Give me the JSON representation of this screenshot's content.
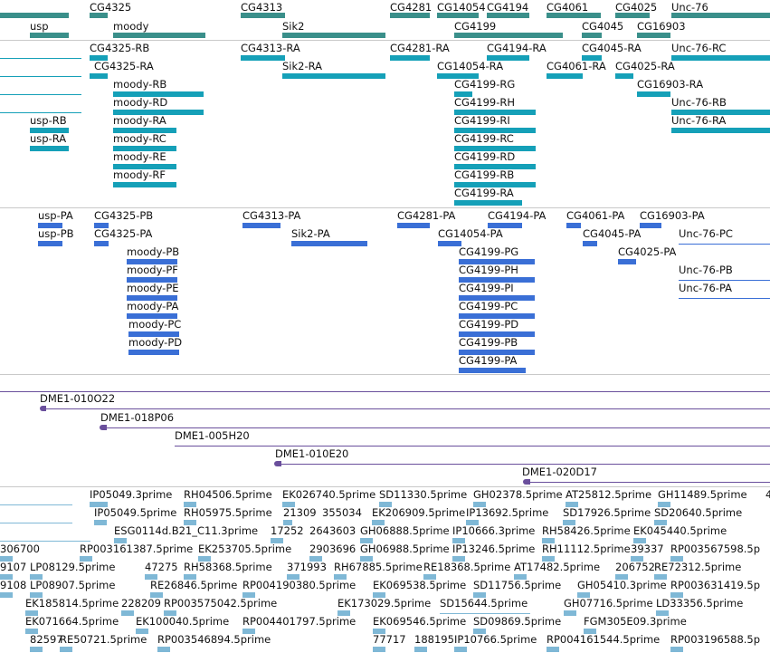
{
  "colors": {
    "gene": "#3a8f8a",
    "transcript_a": "#15a0b8",
    "transcript_b": "#3a6fd6",
    "clone": "#6a4f9c",
    "est": "#7fb8d6",
    "separator": "#c9c9c9"
  },
  "tracks": {
    "genes": {
      "labels": [
        "CG4325",
        "CG4313",
        "CG4281",
        "CG14054",
        "CG4194",
        "CG4061",
        "CG4025",
        "Unc-76",
        "usp",
        "moody",
        "Sik2",
        "CG4199",
        "CG4045",
        "CG16903"
      ]
    },
    "transcripts_a": {
      "labels": [
        "CG4325-RB",
        "CG4313-RA",
        "CG4281-RA",
        "CG4194-RA",
        "CG4045-RA",
        "Unc-76-RC",
        "CG4325-RA",
        "Sik2-RA",
        "CG14054-RA",
        "CG4061-RA",
        "CG4025-RA",
        "CG16903-RA",
        "moody-RB",
        "CG4199-RG",
        "moody-RD",
        "CG4199-RH",
        "Unc-76-RB",
        "usp-RB",
        "moody-RA",
        "CG4199-RI",
        "Unc-76-RA",
        "usp-RA",
        "moody-RC",
        "CG4199-RC",
        "moody-RE",
        "CG4199-RD",
        "moody-RF",
        "CG4199-RB",
        "CG4199-RA"
      ]
    },
    "transcripts_b": {
      "labels": [
        "usp-PA",
        "CG4325-PB",
        "CG4313-PA",
        "CG4281-PA",
        "CG4194-PA",
        "CG4061-PA",
        "CG16903-PA",
        "usp-PB",
        "CG4325-PA",
        "Sik2-PA",
        "CG14054-PA",
        "CG4045-PA",
        "Unc-76-PC",
        "moody-PB",
        "CG4199-PG",
        "CG4025-PA",
        "moody-PF",
        "CG4199-PH",
        "Unc-76-PB",
        "moody-PE",
        "CG4199-PI",
        "Unc-76-PA",
        "moody-PA",
        "CG4199-PC",
        "moody-PC",
        "CG4199-PD",
        "moody-PD",
        "CG4199-PB",
        "CG4199-PA"
      ]
    },
    "clones": {
      "labels": [
        "DME1-010O22",
        "DME1-018P06",
        "DME1-005H20",
        "DME1-010E20",
        "DME1-020D17"
      ]
    },
    "ests": {
      "rows": [
        [
          "IP05049.3prime",
          "RH04506.5prime",
          "EK026740.5prime",
          "SD11330.5prime",
          "GH02378.5prime",
          "AT25812.5prime",
          "GH11489.5prime",
          "4"
        ],
        [
          "IP05049.5prime",
          "RH05975.5prime",
          "21309",
          "355034",
          "EK206909.5prime",
          "IP13692.5prime",
          "SD17926.5prime",
          "SD20640.5prime"
        ],
        [
          "ESG0114d.B21_C11.3prime",
          "17252",
          "2643603",
          "GH06888.5prime",
          "IP10666.3prime",
          "RH58426.5prime",
          "EK045440.5prime"
        ],
        [
          "306700",
          "RP003161387.5prime",
          "EK253705.5prime",
          "2903696",
          "GH06988.5prime",
          "IP13246.5prime",
          "RH11112.5prime",
          "39337",
          "RP003567598.5p"
        ],
        [
          "9107",
          "LP08129.5prime",
          "47275",
          "RH58368.5prime",
          "371993",
          "RH67885.5prime",
          "RE18368.5prime",
          "AT17482.5prime",
          "206752",
          "RE72312.5prime"
        ],
        [
          "9108",
          "LP08907.5prime",
          "RE26846.5prime",
          "RP004190380.5prime",
          "EK069538.5prime",
          "SD11756.5prime",
          "GH05410.3prime",
          "RP003631419.5p"
        ],
        [
          "EK185814.5prime",
          "228209",
          "RP003575042.5prime",
          "EK173029.5prime",
          "SD15644.5prime",
          "GH07716.5prime",
          "LD33356.5prime"
        ],
        [
          "EK071664.5prime",
          "EK100040.5prime",
          "RP004401797.5prime",
          "EK069546.5prime",
          "SD09869.5prime",
          "FGM305E09.3prime"
        ],
        [
          "82597",
          "RE50721.5prime",
          "RP003546894.5prime",
          "77717",
          "188195",
          "IP10766.5prime",
          "RP004161544.5prime",
          "RP003196588.5p"
        ]
      ]
    }
  }
}
